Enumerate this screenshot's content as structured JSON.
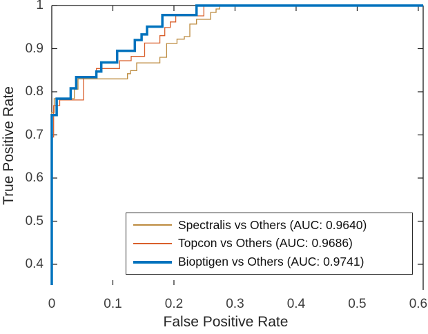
{
  "figure": {
    "background_color": "#ffffff",
    "axis_color": "#1a1a1a",
    "tick_label_color": "#3d3d3d"
  },
  "chart_data": {
    "type": "line",
    "subtype": "roc-step-curves",
    "title": "",
    "xlabel": "False Positive Rate",
    "ylabel": "True Positive Rate",
    "xlim": [
      0,
      0.608
    ],
    "ylim": [
      0.352,
      1.0
    ],
    "grid": false,
    "legend_position": "inside-bottom-center",
    "x_ticks": [
      "0",
      "0.1",
      "0.2",
      "0.3",
      "0.4",
      "0.5",
      "0.6"
    ],
    "x_tick_values": [
      0,
      0.1,
      0.2,
      0.3,
      0.4,
      0.5,
      0.6
    ],
    "y_ticks": [
      "0.4",
      "0.5",
      "0.6",
      "0.7",
      "0.8",
      "0.9",
      "1"
    ],
    "y_tick_values": [
      0.4,
      0.5,
      0.6,
      0.7,
      0.8,
      0.9,
      1.0
    ],
    "visible_bottom_tick_marks": [
      0.1,
      0.2
    ],
    "series": [
      {
        "name": "Spectralis vs Others",
        "auc": "0.9640",
        "label": "Spectralis vs Others (AUC: 0.9640)",
        "color": "#BC8A3E",
        "line_width": 1.3,
        "points": [
          [
            0,
            0.352
          ],
          [
            0,
            0.752
          ],
          [
            0.004,
            0.752
          ],
          [
            0.004,
            0.784
          ],
          [
            0.037,
            0.784
          ],
          [
            0.037,
            0.806
          ],
          [
            0.043,
            0.806
          ],
          [
            0.043,
            0.83
          ],
          [
            0.124,
            0.83
          ],
          [
            0.124,
            0.842
          ],
          [
            0.129,
            0.842
          ],
          [
            0.129,
            0.849
          ],
          [
            0.139,
            0.849
          ],
          [
            0.139,
            0.867
          ],
          [
            0.177,
            0.867
          ],
          [
            0.177,
            0.88
          ],
          [
            0.188,
            0.88
          ],
          [
            0.188,
            0.912
          ],
          [
            0.205,
            0.912
          ],
          [
            0.205,
            0.922
          ],
          [
            0.217,
            0.922
          ],
          [
            0.217,
            0.928
          ],
          [
            0.226,
            0.928
          ],
          [
            0.226,
            0.957
          ],
          [
            0.237,
            0.957
          ],
          [
            0.237,
            0.968
          ],
          [
            0.26,
            0.968
          ],
          [
            0.26,
            0.984
          ],
          [
            0.269,
            0.984
          ],
          [
            0.269,
            0.992
          ],
          [
            0.275,
            0.992
          ],
          [
            0.275,
            1.0
          ],
          [
            0.608,
            1.0
          ]
        ]
      },
      {
        "name": "Topcon vs Others",
        "auc": "0.9686",
        "label": "Topcon vs Others (AUC: 0.9686)",
        "color": "#D95F2B",
        "line_width": 1.3,
        "points": [
          [
            0,
            0.352
          ],
          [
            0,
            0.695
          ],
          [
            0.003,
            0.695
          ],
          [
            0.003,
            0.768
          ],
          [
            0.013,
            0.768
          ],
          [
            0.013,
            0.781
          ],
          [
            0.052,
            0.781
          ],
          [
            0.052,
            0.835
          ],
          [
            0.073,
            0.835
          ],
          [
            0.073,
            0.854
          ],
          [
            0.111,
            0.854
          ],
          [
            0.111,
            0.872
          ],
          [
            0.13,
            0.872
          ],
          [
            0.13,
            0.882
          ],
          [
            0.152,
            0.882
          ],
          [
            0.152,
            0.913
          ],
          [
            0.177,
            0.913
          ],
          [
            0.177,
            0.93
          ],
          [
            0.185,
            0.93
          ],
          [
            0.185,
            0.949
          ],
          [
            0.194,
            0.949
          ],
          [
            0.194,
            0.962
          ],
          [
            0.203,
            0.962
          ],
          [
            0.203,
            0.976
          ],
          [
            0.249,
            0.976
          ],
          [
            0.249,
            1.0
          ],
          [
            0.608,
            1.0
          ]
        ]
      },
      {
        "name": "Bioptigen vs Others",
        "auc": "0.9741",
        "label": "Bioptigen vs Others (AUC: 0.9741)",
        "color": "#0072BD",
        "line_width": 3.5,
        "points": [
          [
            0,
            0.352
          ],
          [
            0,
            0.746
          ],
          [
            0.008,
            0.746
          ],
          [
            0.008,
            0.784
          ],
          [
            0.031,
            0.784
          ],
          [
            0.031,
            0.808
          ],
          [
            0.04,
            0.808
          ],
          [
            0.04,
            0.834
          ],
          [
            0.073,
            0.834
          ],
          [
            0.073,
            0.847
          ],
          [
            0.081,
            0.847
          ],
          [
            0.081,
            0.868
          ],
          [
            0.107,
            0.868
          ],
          [
            0.107,
            0.895
          ],
          [
            0.136,
            0.895
          ],
          [
            0.136,
            0.92
          ],
          [
            0.147,
            0.92
          ],
          [
            0.147,
            0.933
          ],
          [
            0.156,
            0.933
          ],
          [
            0.156,
            0.951
          ],
          [
            0.181,
            0.951
          ],
          [
            0.181,
            0.978
          ],
          [
            0.237,
            0.978
          ],
          [
            0.237,
            1.0
          ],
          [
            0.608,
            1.0
          ]
        ]
      }
    ]
  }
}
